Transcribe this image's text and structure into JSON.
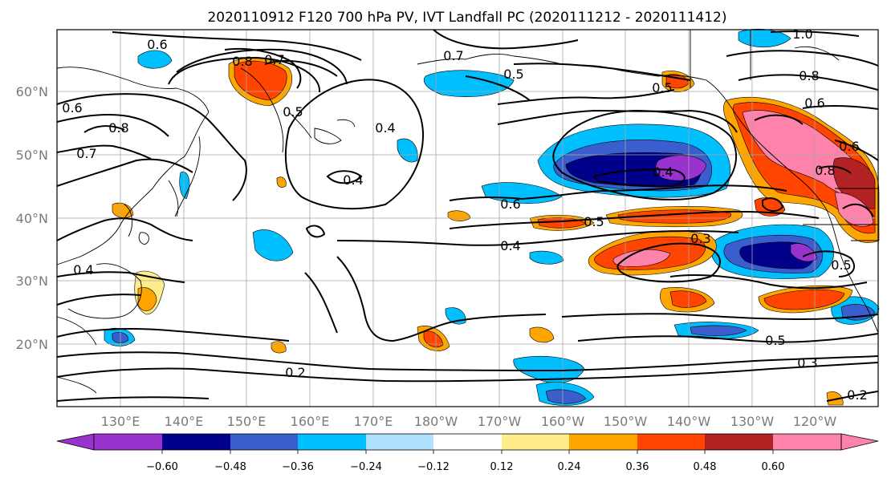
{
  "title": "2020110912 F120 700 hPa PV, IVT Landfall PC (2020111212 - 2020111412)",
  "axes": {
    "lat_labels": [
      "60°N",
      "50°N",
      "40°N",
      "30°N",
      "20°N"
    ],
    "lon_labels": [
      "130°E",
      "140°E",
      "150°E",
      "160°E",
      "170°E",
      "180°W",
      "170°W",
      "160°W",
      "150°W",
      "140°W",
      "130°W",
      "120°W"
    ]
  },
  "colorbar": {
    "labels": [
      "−0.60",
      "−0.48",
      "−0.36",
      "−0.24",
      "−0.12",
      "0.12",
      "0.24",
      "0.36",
      "0.48",
      "0.60"
    ],
    "colors": [
      "#9a32cd",
      "#00008b",
      "#3a5fcd",
      "#00bfff",
      "#b0e2ff",
      "#ffffff",
      "#ffec8b",
      "#ffa500",
      "#ff4500",
      "#b22222",
      "#ff82ab"
    ]
  },
  "contour_labels": [
    "0.6",
    "0.8",
    "0.7",
    "0.5",
    "0.4",
    "0.6",
    "0.8",
    "0.7",
    "0.7",
    "0.5",
    "0.4",
    "0.2",
    "1.0",
    "0.8",
    "0.6",
    "0.5",
    "0.6",
    "0.8",
    "0.6",
    "0.4",
    "0.5",
    "0.4",
    "0.3",
    "0.5",
    "0.5",
    "0.3",
    "0.2",
    "0.4"
  ]
}
